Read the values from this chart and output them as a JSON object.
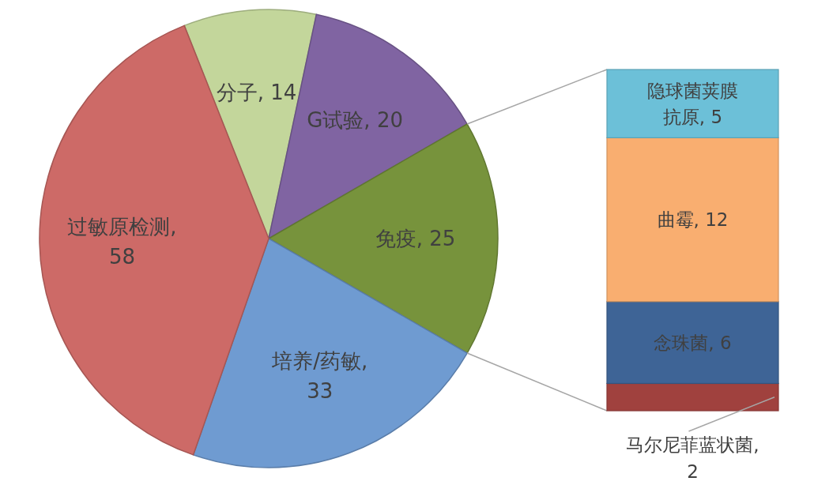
{
  "chart_data": [
    {
      "type": "pie",
      "categories": [
        null,
        null,
        null,
        null,
        null
      ],
      "values": [
        14,
        20,
        25,
        33,
        58
      ],
      "colors": [
        "#c3d69b",
        "#8064a2",
        "#77933c",
        "#6f9bd1",
        "#cd6a67"
      ],
      "value_labels": [
        "分子, 14",
        "G试验, 20",
        "免疫, 25",
        "培养/药敏, 33",
        "过敏原检测, 58"
      ]
    },
    {
      "type": "bar",
      "stacked": true,
      "categories": [
        null
      ],
      "series": [
        {
          "color": "#a0413e",
          "values": [
            2
          ],
          "value_labels": [
            "马尔尼菲蓝状菌, 2"
          ]
        },
        {
          "color": "#3e6496",
          "values": [
            6
          ],
          "value_labels": [
            "念珠菌, 6"
          ]
        },
        {
          "color": "#f9ae70",
          "values": [
            12
          ],
          "value_labels": [
            "曲霉, 12"
          ]
        },
        {
          "color": "#6cc0d8",
          "values": [
            5
          ],
          "value_labels": [
            "隐球菌荚膜抗原, 5"
          ]
        }
      ]
    }
  ]
}
